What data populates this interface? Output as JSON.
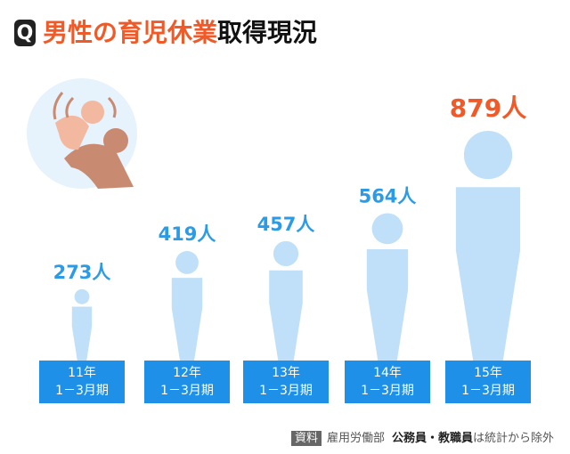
{
  "chart_data": {
    "type": "pictogram",
    "title_icon": "Q",
    "title": "男性の育児休業",
    "title_end": "取得現況",
    "categories": [
      "11年\n1－3月期",
      "12年\n1－3月期",
      "13年\n1－3月期",
      "14年\n1－3月期",
      "15年\n1－3月期"
    ],
    "values": [
      273,
      419,
      457,
      564,
      879
    ],
    "value_labels": [
      "273人",
      "419人",
      "457人",
      "564人",
      "879人"
    ],
    "color": "#bfe0f8",
    "value_label_colors": [
      "#2b9be5",
      "#2b9be5",
      "#2b9be5",
      "#2b9be5",
      "#f05a28"
    ],
    "source": {
      "badge": "資料",
      "org": "雇用労働部",
      "bold": "公務員・教職員",
      "note": "は統計から除外"
    }
  }
}
